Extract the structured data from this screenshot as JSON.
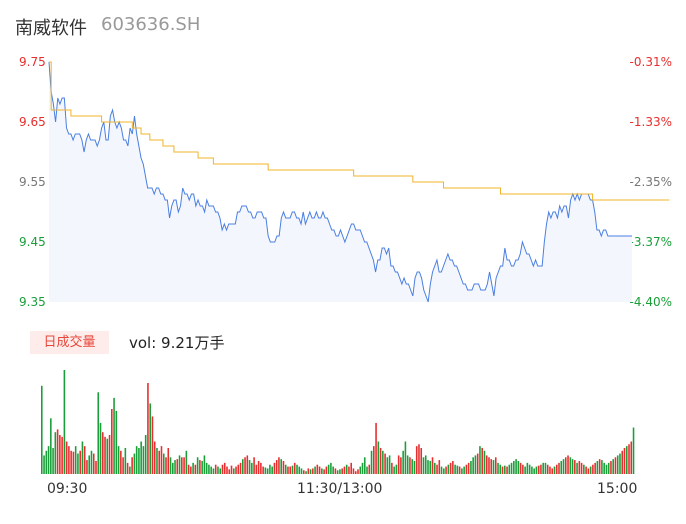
{
  "header": {
    "name": "南威软件",
    "code": "603636.SH"
  },
  "volume": {
    "tab_label": "日成交量",
    "summary": "vol: 9.21万手"
  },
  "colors": {
    "price_line": "#4a7fe0",
    "avg_line": "#f0b429",
    "area_fill": "#f3f6fd",
    "up": "#e62e2e",
    "down": "#1a9e3a"
  },
  "chart_data": [
    {
      "type": "line",
      "y_ticks_left": [
        "9.75",
        "9.65",
        "9.55",
        "9.45",
        "9.35"
      ],
      "y_ticks_right": [
        "-0.31%",
        "-1.33%",
        "-2.35%",
        "-3.37%",
        "-4.40%"
      ],
      "ylim": [
        9.35,
        9.75
      ],
      "x_ticks": [
        "09:30",
        "11:30/13:00",
        "15:00"
      ],
      "series": [
        {
          "values": [
            9.75,
            9.7,
            9.68,
            9.65,
            9.69,
            9.68,
            9.69,
            9.69,
            9.64,
            9.63,
            9.63,
            9.62,
            9.63,
            9.63,
            9.63,
            9.62,
            9.6,
            9.62,
            9.63,
            9.62,
            9.62,
            9.62,
            9.61,
            9.62,
            9.64,
            9.65,
            9.62,
            9.62,
            9.66,
            9.67,
            9.65,
            9.64,
            9.65,
            9.64,
            9.62,
            9.62,
            9.61,
            9.64,
            9.63,
            9.66,
            9.63,
            9.61,
            9.59,
            9.58,
            9.56,
            9.54,
            9.54,
            9.54,
            9.53,
            9.54,
            9.54,
            9.53,
            9.53,
            9.52,
            9.52,
            9.49,
            9.51,
            9.52,
            9.52,
            9.5,
            9.51,
            9.54,
            9.53,
            9.53,
            9.52,
            9.53,
            9.53,
            9.51,
            9.52,
            9.51,
            9.51,
            9.5,
            9.52,
            9.51,
            9.51,
            9.51,
            9.5,
            9.5,
            9.49,
            9.47,
            9.48,
            9.47,
            9.48,
            9.48,
            9.48,
            9.48,
            9.5,
            9.5,
            9.51,
            9.51,
            9.51,
            9.5,
            9.5,
            9.49,
            9.49,
            9.5,
            9.5,
            9.5,
            9.49,
            9.49,
            9.46,
            9.45,
            9.45,
            9.45,
            9.46,
            9.46,
            9.49,
            9.5,
            9.49,
            9.49,
            9.49,
            9.5,
            9.5,
            9.49,
            9.49,
            9.48,
            9.5,
            9.48,
            9.49,
            9.5,
            9.49,
            9.49,
            9.5,
            9.49,
            9.49,
            9.5,
            9.49,
            9.49,
            9.48,
            9.47,
            9.47,
            9.46,
            9.46,
            9.47,
            9.46,
            9.45,
            9.46,
            9.47,
            9.48,
            9.48,
            9.47,
            9.47,
            9.47,
            9.46,
            9.45,
            9.45,
            9.44,
            9.43,
            9.42,
            9.4,
            9.42,
            9.42,
            9.44,
            9.44,
            9.43,
            9.44,
            9.41,
            9.41,
            9.4,
            9.4,
            9.39,
            9.38,
            9.39,
            9.38,
            9.38,
            9.37,
            9.36,
            9.39,
            9.4,
            9.4,
            9.39,
            9.37,
            9.36,
            9.35,
            9.38,
            9.4,
            9.41,
            9.42,
            9.4,
            9.4,
            9.41,
            9.42,
            9.43,
            9.42,
            9.42,
            9.41,
            9.41,
            9.4,
            9.39,
            9.38,
            9.38,
            9.37,
            9.37,
            9.37,
            9.38,
            9.38,
            9.38,
            9.37,
            9.37,
            9.37,
            9.38,
            9.4,
            9.38,
            9.36,
            9.39,
            9.4,
            9.41,
            9.41,
            9.44,
            9.42,
            9.42,
            9.41,
            9.41,
            9.42,
            9.42,
            9.43,
            9.45,
            9.44,
            9.43,
            9.43,
            9.42,
            9.41,
            9.42,
            9.41,
            9.41,
            9.41,
            9.45,
            9.48,
            9.5,
            9.49,
            9.5,
            9.5,
            9.49,
            9.51,
            9.5,
            9.51,
            9.51,
            9.49,
            9.52,
            9.53,
            9.52,
            9.53,
            9.52,
            9.53,
            9.53,
            9.53,
            9.53,
            9.52,
            9.52,
            9.5,
            9.47,
            9.47,
            9.46,
            9.47,
            9.47,
            9.46,
            9.46,
            9.46,
            9.46,
            9.46,
            9.46,
            9.46,
            9.46,
            9.46,
            9.46,
            9.46,
            9.46
          ]
        },
        {
          "values": [
            9.75,
            9.67,
            9.67,
            9.67,
            9.67,
            9.67,
            9.67,
            9.67,
            9.67,
            9.67,
            9.66,
            9.66,
            9.66,
            9.66,
            9.66,
            9.66,
            9.66,
            9.66,
            9.66,
            9.66,
            9.66,
            9.66,
            9.66,
            9.66,
            9.65,
            9.65,
            9.65,
            9.65,
            9.65,
            9.65,
            9.65,
            9.65,
            9.65,
            9.65,
            9.65,
            9.65,
            9.65,
            9.65,
            9.64,
            9.64,
            9.64,
            9.64,
            9.63,
            9.63,
            9.63,
            9.63,
            9.62,
            9.62,
            9.62,
            9.62,
            9.62,
            9.62,
            9.61,
            9.61,
            9.61,
            9.61,
            9.61,
            9.6,
            9.6,
            9.6,
            9.6,
            9.6,
            9.6,
            9.6,
            9.6,
            9.6,
            9.6,
            9.6,
            9.59,
            9.59,
            9.59,
            9.59,
            9.59,
            9.59,
            9.59,
            9.58,
            9.58,
            9.58,
            9.58,
            9.58,
            9.58,
            9.58,
            9.58,
            9.58,
            9.58,
            9.58,
            9.58,
            9.58,
            9.58,
            9.58,
            9.58,
            9.58,
            9.58,
            9.58,
            9.58,
            9.58,
            9.58,
            9.58,
            9.58,
            9.58,
            9.57,
            9.57,
            9.57,
            9.57,
            9.57,
            9.57,
            9.57,
            9.57,
            9.57,
            9.57,
            9.57,
            9.57,
            9.57,
            9.57,
            9.57,
            9.57,
            9.57,
            9.57,
            9.57,
            9.57,
            9.57,
            9.57,
            9.57,
            9.57,
            9.57,
            9.57,
            9.57,
            9.57,
            9.57,
            9.57,
            9.57,
            9.57,
            9.57,
            9.57,
            9.57,
            9.57,
            9.57,
            9.57,
            9.57,
            9.56,
            9.56,
            9.56,
            9.56,
            9.56,
            9.56,
            9.56,
            9.56,
            9.56,
            9.56,
            9.56,
            9.56,
            9.56,
            9.56,
            9.56,
            9.56,
            9.56,
            9.56,
            9.56,
            9.56,
            9.56,
            9.56,
            9.56,
            9.56,
            9.56,
            9.56,
            9.56,
            9.55,
            9.55,
            9.55,
            9.55,
            9.55,
            9.55,
            9.55,
            9.55,
            9.55,
            9.55,
            9.55,
            9.55,
            9.55,
            9.55,
            9.54,
            9.54,
            9.54,
            9.54,
            9.54,
            9.54,
            9.54,
            9.54,
            9.54,
            9.54,
            9.54,
            9.54,
            9.54,
            9.54,
            9.54,
            9.54,
            9.54,
            9.54,
            9.54,
            9.54,
            9.54,
            9.54,
            9.54,
            9.54,
            9.54,
            9.54,
            9.53,
            9.53,
            9.53,
            9.53,
            9.53,
            9.53,
            9.53,
            9.53,
            9.53,
            9.53,
            9.53,
            9.53,
            9.53,
            9.53,
            9.53,
            9.53,
            9.53,
            9.53,
            9.53,
            9.53,
            9.53,
            9.53,
            9.53,
            9.53,
            9.53,
            9.53,
            9.53,
            9.53,
            9.53,
            9.53,
            9.53,
            9.53,
            9.53,
            9.53,
            9.53,
            9.53,
            9.53,
            9.53,
            9.53,
            9.53,
            9.53,
            9.53,
            9.52,
            9.52,
            9.52,
            9.52,
            9.52,
            9.52,
            9.52,
            9.52,
            9.52,
            9.52,
            9.52,
            9.52,
            9.52,
            9.52,
            9.52,
            9.52,
            9.52,
            9.52,
            9.52,
            9.52,
            9.52,
            9.52,
            9.52,
            9.52,
            9.52,
            9.52,
            9.52,
            9.52,
            9.52,
            9.52,
            9.52,
            9.52,
            9.52,
            9.52,
            9.52,
            9.52
          ]
        }
      ]
    },
    {
      "type": "bar",
      "x_ticks": [
        "09:30",
        "11:30/13:00",
        "15:00"
      ],
      "values": [
        95,
        20,
        25,
        30,
        60,
        28,
        45,
        48,
        42,
        40,
        112,
        35,
        30,
        25,
        24,
        30,
        22,
        25,
        35,
        30,
        15,
        20,
        25,
        22,
        14,
        88,
        55,
        45,
        40,
        38,
        42,
        70,
        82,
        68,
        30,
        25,
        18,
        28,
        12,
        8,
        18,
        22,
        30,
        28,
        35,
        30,
        42,
        98,
        76,
        62,
        35,
        28,
        25,
        30,
        22,
        18,
        28,
        18,
        12,
        15,
        16,
        20,
        18,
        18,
        25,
        10,
        8,
        12,
        10,
        18,
        15,
        14,
        20,
        12,
        10,
        8,
        6,
        10,
        8,
        6,
        10,
        12,
        8,
        5,
        9,
        6,
        8,
        10,
        12,
        16,
        18,
        20,
        15,
        12,
        18,
        10,
        14,
        12,
        8,
        7,
        6,
        10,
        8,
        12,
        15,
        18,
        16,
        14,
        10,
        8,
        8,
        9,
        12,
        10,
        8,
        6,
        4,
        3,
        6,
        5,
        6,
        8,
        10,
        8,
        6,
        5,
        8,
        10,
        12,
        8,
        6,
        4,
        5,
        6,
        8,
        10,
        8,
        12,
        6,
        3,
        5,
        8,
        12,
        18,
        8,
        10,
        25,
        30,
        55,
        35,
        28,
        25,
        22,
        18,
        20,
        12,
        8,
        10,
        20,
        18,
        25,
        35,
        20,
        18,
        16,
        14,
        30,
        32,
        28,
        18,
        20,
        15,
        14,
        18,
        12,
        10,
        15,
        8,
        6,
        8,
        10,
        12,
        14,
        10,
        9,
        8,
        6,
        8,
        10,
        12,
        14,
        18,
        20,
        22,
        30,
        28,
        25,
        20,
        18,
        16,
        15,
        18,
        12,
        10,
        8,
        9,
        8,
        10,
        12,
        14,
        16,
        14,
        12,
        10,
        8,
        12,
        10,
        8,
        6,
        8,
        9,
        10,
        12,
        12,
        10,
        8,
        6,
        8,
        10,
        12,
        14,
        16,
        18,
        20,
        18,
        16,
        15,
        12,
        14,
        12,
        10,
        8,
        6,
        8,
        10,
        12,
        14,
        16,
        15,
        12,
        10,
        12,
        14,
        16,
        18,
        20,
        22,
        25,
        28,
        30,
        32,
        35,
        50
      ],
      "directions": [
        "d",
        "d",
        "d",
        "d",
        "d",
        "d",
        "d",
        "u",
        "u",
        "u",
        "d",
        "u",
        "u",
        "u",
        "u",
        "d",
        "d",
        "u",
        "d",
        "u",
        "u",
        "d",
        "d",
        "u",
        "u",
        "d",
        "d",
        "u",
        "u",
        "d",
        "u",
        "u",
        "d",
        "d",
        "d",
        "u",
        "u",
        "d",
        "u",
        "d",
        "u",
        "d",
        "d",
        "d",
        "d",
        "d",
        "d",
        "u",
        "d",
        "u",
        "u",
        "d",
        "u",
        "u",
        "d",
        "u",
        "u",
        "d",
        "d",
        "d",
        "u",
        "d",
        "u",
        "u",
        "d",
        "u",
        "u",
        "d",
        "u",
        "d",
        "u",
        "d",
        "d",
        "d",
        "d",
        "d",
        "d",
        "u",
        "d",
        "d",
        "u",
        "u",
        "u",
        "u",
        "u",
        "d",
        "u",
        "u",
        "u",
        "d",
        "u",
        "u",
        "d",
        "d",
        "u",
        "u",
        "u",
        "u",
        "u",
        "d",
        "d",
        "d",
        "d",
        "u",
        "u",
        "u",
        "d",
        "u",
        "d",
        "u",
        "u",
        "d",
        "u",
        "d",
        "d",
        "d",
        "u",
        "d",
        "u",
        "d",
        "u",
        "d",
        "u",
        "u",
        "d",
        "u",
        "u",
        "d",
        "d",
        "d",
        "u",
        "d",
        "d",
        "u",
        "u",
        "d",
        "u",
        "u",
        "u",
        "u",
        "u",
        "d",
        "d",
        "d",
        "d",
        "u",
        "d",
        "u",
        "u",
        "d",
        "u",
        "d",
        "u",
        "d",
        "d",
        "u",
        "d",
        "d",
        "u",
        "u",
        "d",
        "d",
        "d",
        "u",
        "d",
        "d",
        "u",
        "u",
        "u",
        "d",
        "d",
        "d",
        "d",
        "u",
        "d",
        "u",
        "u",
        "d",
        "d",
        "u",
        "d",
        "u",
        "u",
        "d",
        "d",
        "u",
        "d",
        "d",
        "u",
        "u",
        "d",
        "d",
        "d",
        "u",
        "d",
        "u",
        "d",
        "u",
        "u",
        "u",
        "d",
        "u",
        "d",
        "d",
        "u",
        "d",
        "u",
        "d",
        "d",
        "d",
        "d",
        "d",
        "u",
        "u",
        "d",
        "d",
        "d",
        "d",
        "d",
        "d",
        "u",
        "u",
        "d",
        "d",
        "u",
        "u",
        "u",
        "d",
        "u",
        "u",
        "d",
        "d",
        "u",
        "u",
        "d",
        "d",
        "u",
        "d",
        "u",
        "u",
        "d",
        "u",
        "u",
        "d",
        "u",
        "u",
        "d",
        "u",
        "d",
        "d",
        "d",
        "d",
        "u",
        "d",
        "u",
        "d",
        "d",
        "u",
        "u",
        "d",
        "u",
        "u",
        "d",
        "u",
        "u",
        "u"
      ]
    }
  ]
}
